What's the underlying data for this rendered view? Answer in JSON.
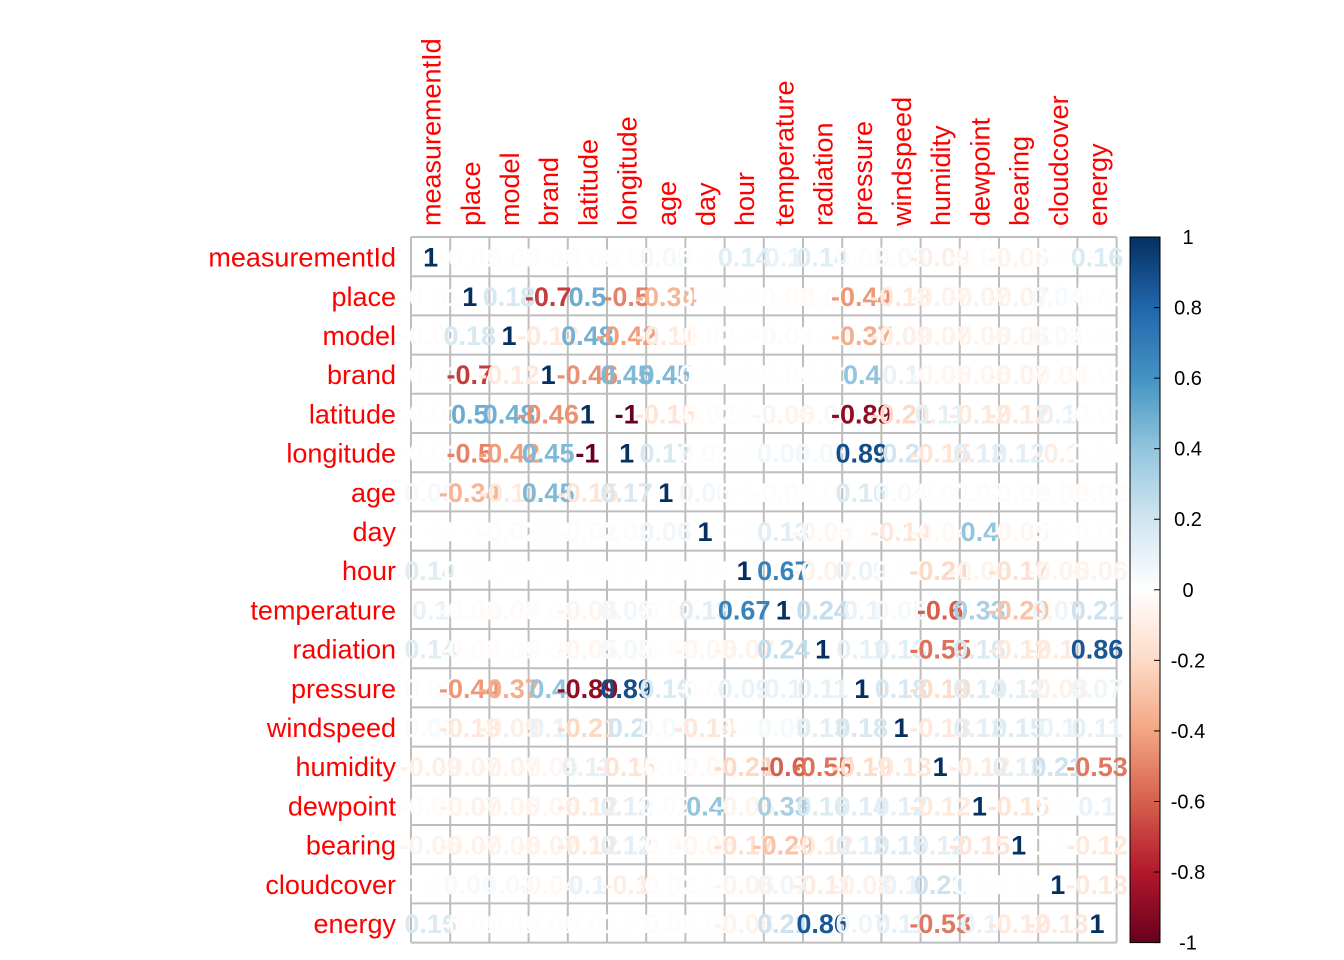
{
  "chart_data": {
    "type": "heatmap",
    "variables": [
      "measurementId",
      "place",
      "model",
      "brand",
      "latitude",
      "longitude",
      "age",
      "day",
      "hour",
      "temperature",
      "radiation",
      "pressure",
      "windspeed",
      "humidity",
      "dewpoint",
      "bearing",
      "cloudcover",
      "energy"
    ],
    "matrix": [
      [
        1,
        -0.01,
        -0.02,
        -0.01,
        -0.01,
        -0.01,
        0.05,
        0.01,
        0.14,
        0.1,
        0.14,
        0.02,
        0.03,
        -0.09,
        -0.02,
        -0.06,
        0.01,
        0.16
      ],
      [
        -0.01,
        1,
        0.18,
        -0.7,
        0.5,
        -0.5,
        -0.34,
        0.01,
        0.01,
        -0.02,
        -0.02,
        -0.44,
        -0.13,
        -0.07,
        -0.07,
        -0.07,
        0.04,
        -0.01
      ],
      [
        -0.02,
        0.18,
        1,
        -0.12,
        0.48,
        -0.42,
        -0.11,
        -0.02,
        0.01,
        -0.03,
        -0.01,
        -0.37,
        -0.09,
        -0.07,
        -0.06,
        -0.06,
        0.03,
        -0.01
      ],
      [
        -0.01,
        -0.7,
        -0.12,
        1,
        -0.46,
        0.45,
        0.45,
        0.01,
        0.01,
        -0.01,
        -0.01,
        0.4,
        0.1,
        -0.05,
        -0.05,
        -0.07,
        -0.04,
        -0.01
      ],
      [
        -0.01,
        0.5,
        0.48,
        -0.46,
        1,
        -1,
        -0.15,
        -0.02,
        0.01,
        -0.06,
        -0.05,
        -0.89,
        -0.21,
        0.11,
        -0.12,
        -0.12,
        0.1,
        -0.01
      ],
      [
        -0.01,
        -0.5,
        -0.42,
        0.45,
        -1,
        1,
        0.17,
        0.02,
        0.01,
        0.06,
        0.05,
        0.89,
        0.2,
        -0.15,
        0.12,
        0.12,
        -0.1,
        0.01
      ],
      [
        0.05,
        -0.34,
        -0.11,
        0.45,
        -0.15,
        0.17,
        1,
        0.06,
        0.01,
        -0.02,
        -0.01,
        0.16,
        0.04,
        -0.01,
        0.02,
        -0.02,
        -0.02,
        -0.02
      ],
      [
        0.01,
        0.01,
        -0.02,
        0.01,
        -0.02,
        0.02,
        0.06,
        1,
        0.01,
        0.13,
        -0.05,
        -0.01,
        -0.14,
        -0.04,
        0.4,
        -0.05,
        0.01,
        -0.01
      ],
      [
        0.14,
        0.01,
        0.01,
        0.01,
        0.01,
        0.01,
        0.01,
        0.01,
        1,
        0.67,
        -0.07,
        0.09,
        0.01,
        -0.21,
        -0.06,
        -0.17,
        -0.06,
        -0.06
      ],
      [
        0.1,
        -0.02,
        -0.03,
        -0.01,
        -0.06,
        0.06,
        -0.02,
        0.13,
        0.67,
        1,
        0.24,
        0.1,
        0.05,
        -0.6,
        0.33,
        -0.29,
        0.07,
        0.21
      ],
      [
        0.14,
        -0.02,
        -0.01,
        -0.01,
        -0.05,
        0.05,
        -0.01,
        -0.05,
        -0.07,
        0.24,
        1,
        0.11,
        0.13,
        -0.55,
        0.16,
        -0.12,
        -0.11,
        0.86
      ],
      [
        0.02,
        -0.44,
        -0.37,
        0.4,
        -0.89,
        0.89,
        0.16,
        -0.01,
        0.09,
        0.1,
        0.11,
        1,
        0.18,
        -0.19,
        0.14,
        0.12,
        -0.08,
        0.07
      ],
      [
        0.03,
        -0.13,
        -0.09,
        0.1,
        -0.21,
        0.2,
        0.04,
        -0.14,
        0.01,
        0.05,
        0.13,
        0.18,
        1,
        -0.13,
        0.12,
        0.15,
        0.1,
        0.11
      ],
      [
        -0.09,
        -0.07,
        -0.07,
        -0.05,
        0.11,
        -0.15,
        -0.01,
        -0.04,
        -0.21,
        -0.6,
        -0.55,
        -0.19,
        -0.13,
        1,
        -0.12,
        0.12,
        0.21,
        -0.53
      ],
      [
        -0.02,
        -0.07,
        -0.06,
        -0.05,
        -0.12,
        0.12,
        0.02,
        0.4,
        -0.06,
        0.33,
        0.16,
        0.14,
        0.12,
        -0.12,
        1,
        -0.15,
        0.01,
        0.1
      ],
      [
        -0.06,
        -0.07,
        -0.06,
        -0.07,
        -0.12,
        0.12,
        -0.02,
        -0.05,
        -0.17,
        -0.29,
        -0.12,
        0.12,
        0.15,
        0.12,
        -0.15,
        1,
        0.01,
        -0.12
      ],
      [
        0.01,
        0.04,
        0.03,
        -0.04,
        0.1,
        -0.1,
        -0.02,
        0.01,
        -0.06,
        0.07,
        -0.11,
        -0.08,
        0.1,
        0.21,
        0.01,
        0.01,
        1,
        -0.13
      ],
      [
        0.16,
        -0.01,
        -0.01,
        -0.01,
        -0.01,
        0.01,
        -0.02,
        -0.01,
        -0.06,
        0.21,
        0.86,
        0.07,
        0.11,
        -0.53,
        0.1,
        -0.12,
        -0.13,
        1
      ]
    ],
    "colorbar": {
      "range": [
        -1,
        1
      ],
      "ticks": [
        -1,
        -0.8,
        -0.6,
        -0.4,
        -0.2,
        0,
        0.2,
        0.4,
        0.6,
        0.8,
        1
      ],
      "tick_labels": [
        "-1",
        "-0.8",
        "-0.6",
        "-0.4",
        "-0.2",
        "0",
        "0.2",
        "0.4",
        "0.6",
        "0.8",
        "1"
      ]
    },
    "palette": [
      "#67001f",
      "#b2182b",
      "#d6604d",
      "#f4a582",
      "#fddbc7",
      "#ffffff",
      "#d1e5f0",
      "#92c5de",
      "#4393c3",
      "#2166ac",
      "#053061"
    ],
    "grid": true,
    "legend_position": "right",
    "title": "",
    "xlabel": "",
    "ylabel": ""
  }
}
